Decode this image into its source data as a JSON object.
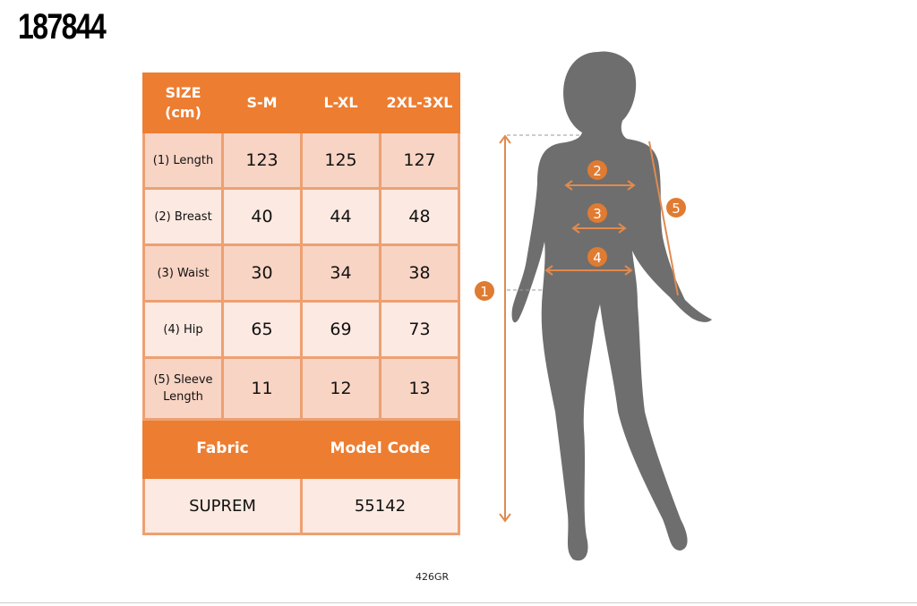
{
  "product_code": "187844",
  "table": {
    "header": [
      "SIZE (cm)",
      "S-M",
      "L-XL",
      "2XL-3XL"
    ],
    "rows": [
      {
        "label": "(1) Length",
        "values": [
          "123",
          "125",
          "127"
        ]
      },
      {
        "label": "(2) Breast",
        "values": [
          "40",
          "44",
          "48"
        ]
      },
      {
        "label": "(3) Waist",
        "values": [
          "30",
          "34",
          "38"
        ]
      },
      {
        "label": "(4) Hip",
        "values": [
          "65",
          "69",
          "73"
        ]
      },
      {
        "label": "(5) Sleeve Length",
        "values": [
          "11",
          "12",
          "13"
        ]
      }
    ],
    "fabric_label": "Fabric",
    "model_code_label": "Model Code",
    "fabric": "SUPREM",
    "model_code": "55142"
  },
  "footer_code": "426GR",
  "figure_markers": [
    "1",
    "2",
    "3",
    "4",
    "5"
  ],
  "colors": {
    "accent": "#ED7D31",
    "silhouette": "#6E6E6E",
    "arrow": "#E08A4F"
  }
}
